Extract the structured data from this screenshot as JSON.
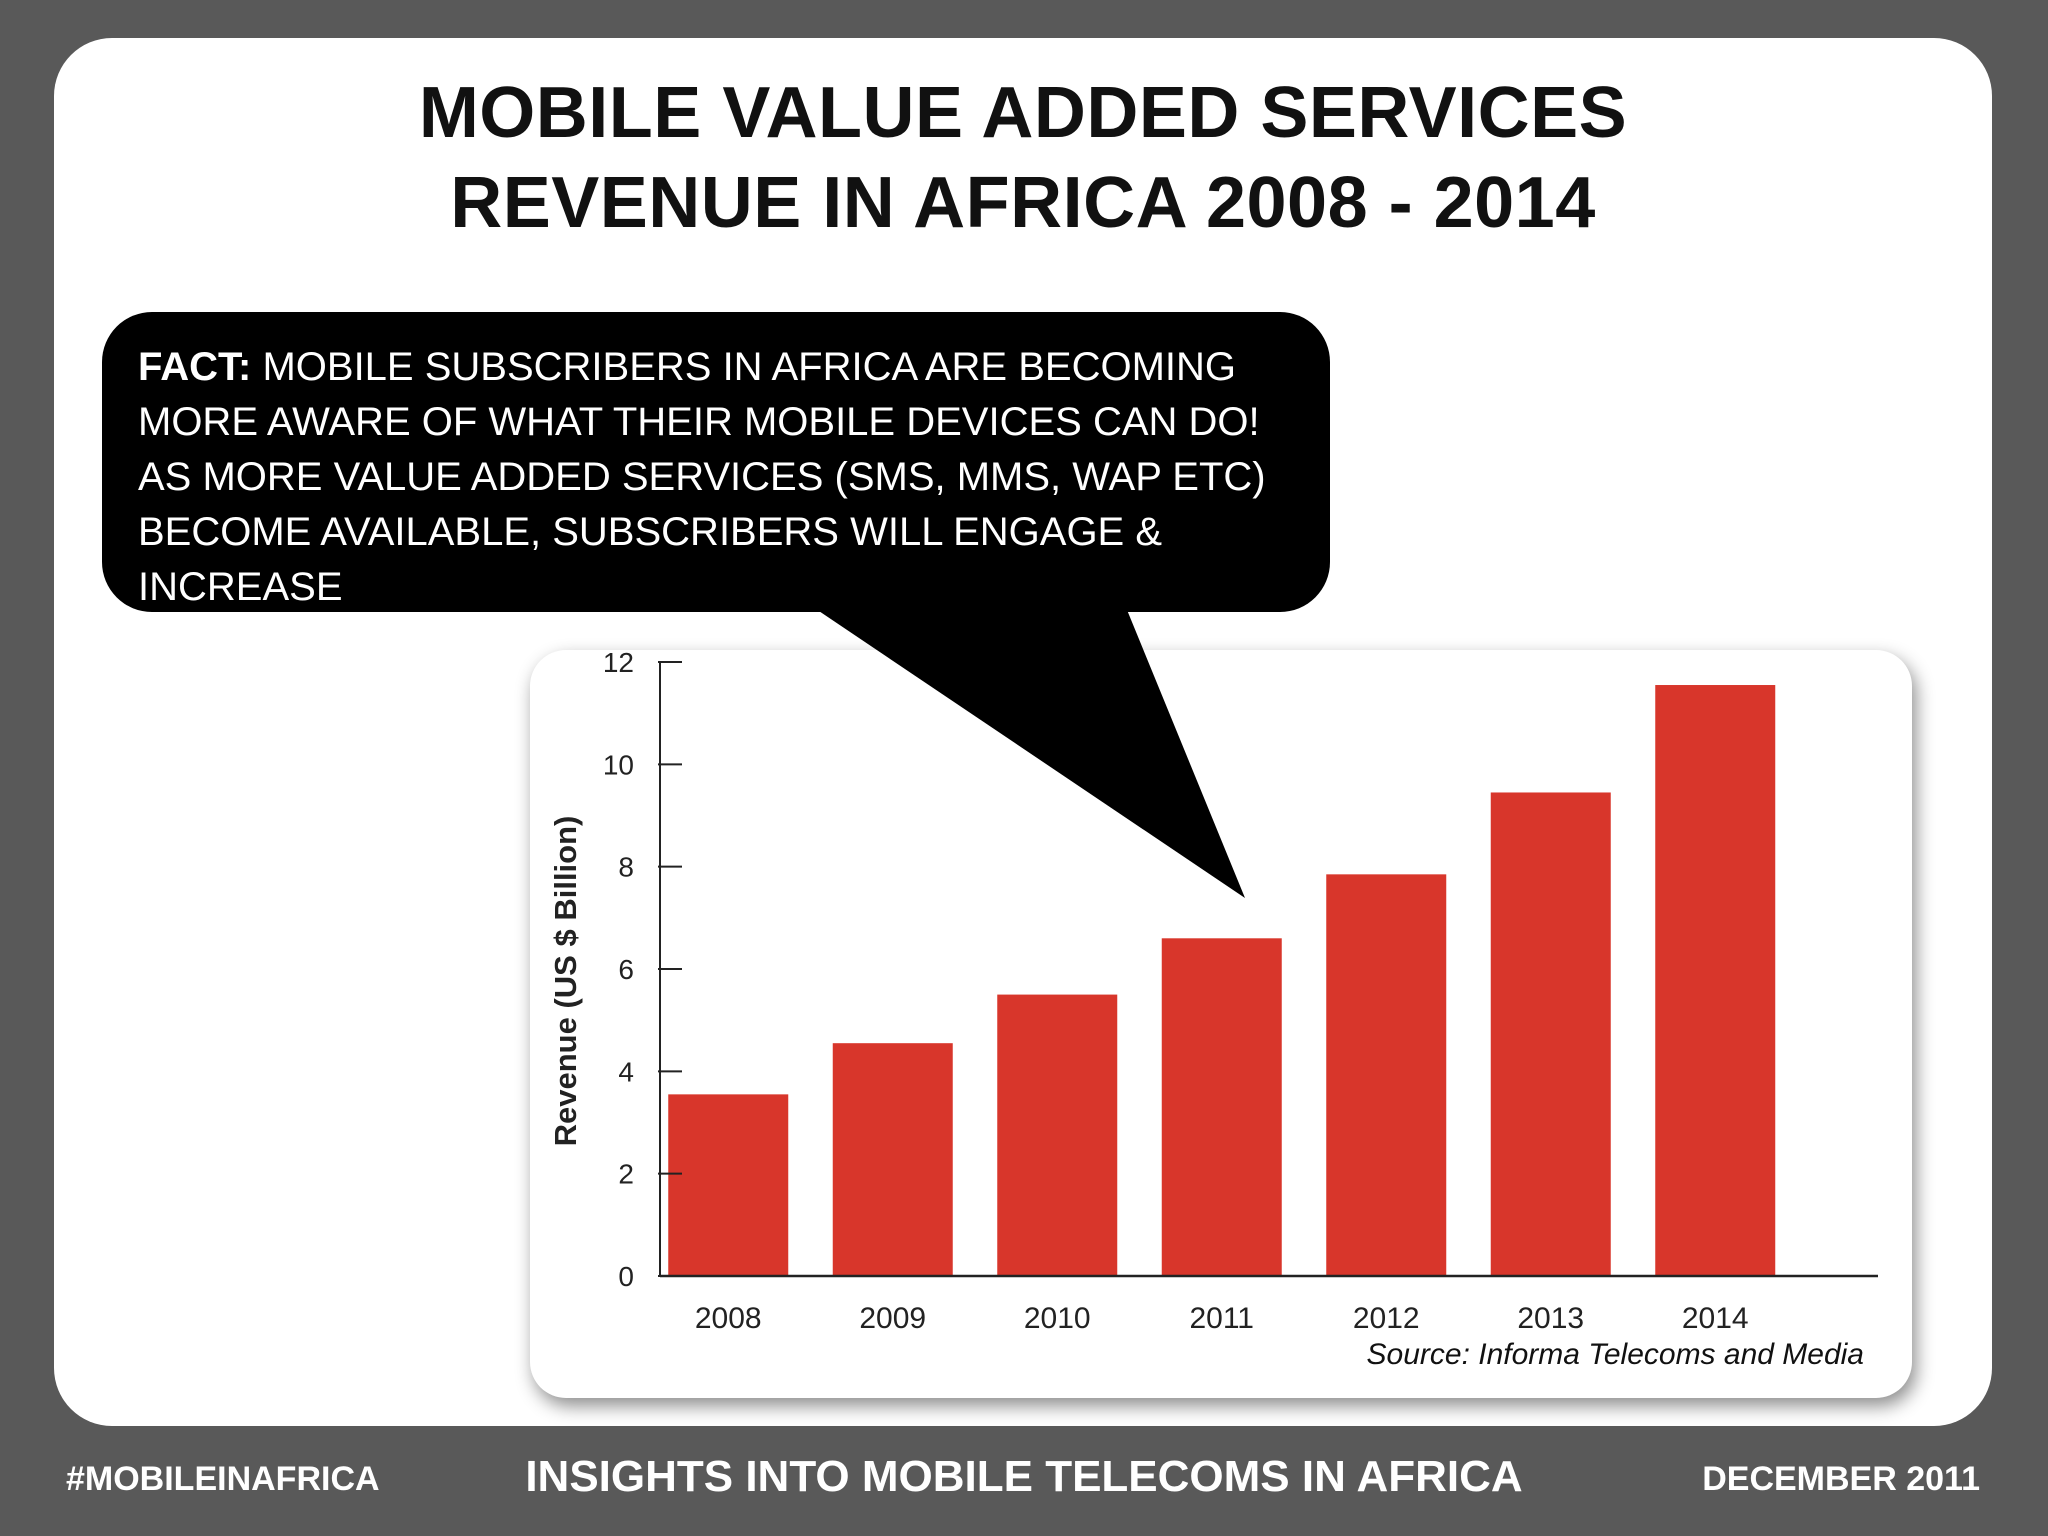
{
  "title_lines": [
    "MOBILE VALUE ADDED SERVICES",
    "REVENUE IN AFRICA 2008 - 2014"
  ],
  "callout": {
    "label": "FACT:",
    "text": "MOBILE SUBSCRIBERS IN AFRICA ARE BECOMING MORE AWARE OF WHAT THEIR MOBILE DEVICES CAN DO! AS MORE VALUE ADDED SERVICES (SMS, MMS, WAP ETC) BECOME AVAILABLE, SUBSCRIBERS WILL ENGAGE & INCREASE"
  },
  "chart_data": {
    "type": "bar",
    "categories": [
      "2008",
      "2009",
      "2010",
      "2011",
      "2012",
      "2013",
      "2014"
    ],
    "values": [
      3.55,
      4.55,
      5.5,
      6.6,
      7.85,
      9.45,
      11.55
    ],
    "ylabel": "Revenue (US $ Billion)",
    "ylim": [
      0,
      12
    ],
    "yticks": [
      0,
      2,
      4,
      6,
      8,
      10,
      12
    ],
    "bar_color": "#d8362b",
    "grid": false
  },
  "source": "Source: Informa Telecoms and Media",
  "footer": {
    "left": "#MOBILEINAFRICA",
    "center": "INSIGHTS INTO MOBILE TELECOMS IN AFRICA",
    "right": "DECEMBER 2011"
  },
  "colors": {
    "background": "#595959",
    "slide": "#ffffff",
    "callout": "#000000"
  }
}
